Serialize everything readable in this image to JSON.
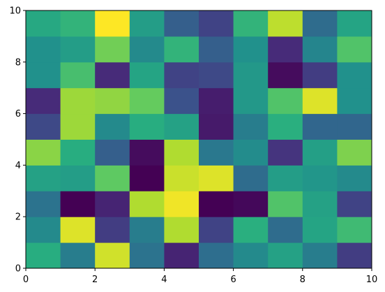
{
  "chart_data": {
    "type": "heatmap",
    "colormap": "viridis",
    "xlim": [
      0,
      10
    ],
    "ylim": [
      0,
      10
    ],
    "xticks": [
      0,
      2,
      4,
      6,
      8,
      10
    ],
    "yticks": [
      0,
      2,
      4,
      6,
      8,
      10
    ],
    "z": [
      [
        0.62,
        0.42,
        0.93,
        0.38,
        0.1,
        0.36,
        0.47,
        0.57,
        0.42,
        0.18
      ],
      [
        0.47,
        0.95,
        0.18,
        0.42,
        0.88,
        0.2,
        0.63,
        0.35,
        0.58,
        0.68
      ],
      [
        0.38,
        0.0,
        0.1,
        0.88,
        0.98,
        0.0,
        0.02,
        0.72,
        0.57,
        0.2
      ],
      [
        0.57,
        0.55,
        0.75,
        0.0,
        0.92,
        0.95,
        0.35,
        0.55,
        0.52,
        0.47
      ],
      [
        0.82,
        0.62,
        0.3,
        0.03,
        0.88,
        0.4,
        0.48,
        0.15,
        0.56,
        0.8
      ],
      [
        0.22,
        0.85,
        0.47,
        0.62,
        0.57,
        0.07,
        0.42,
        0.63,
        0.33,
        0.33
      ],
      [
        0.12,
        0.85,
        0.83,
        0.76,
        0.25,
        0.08,
        0.53,
        0.72,
        0.95,
        0.5
      ],
      [
        0.5,
        0.7,
        0.12,
        0.58,
        0.2,
        0.22,
        0.53,
        0.03,
        0.18,
        0.5
      ],
      [
        0.5,
        0.55,
        0.78,
        0.47,
        0.65,
        0.3,
        0.5,
        0.12,
        0.45,
        0.72
      ],
      [
        0.6,
        0.65,
        1.0,
        0.55,
        0.3,
        0.2,
        0.65,
        0.9,
        0.35,
        0.58
      ]
    ]
  }
}
